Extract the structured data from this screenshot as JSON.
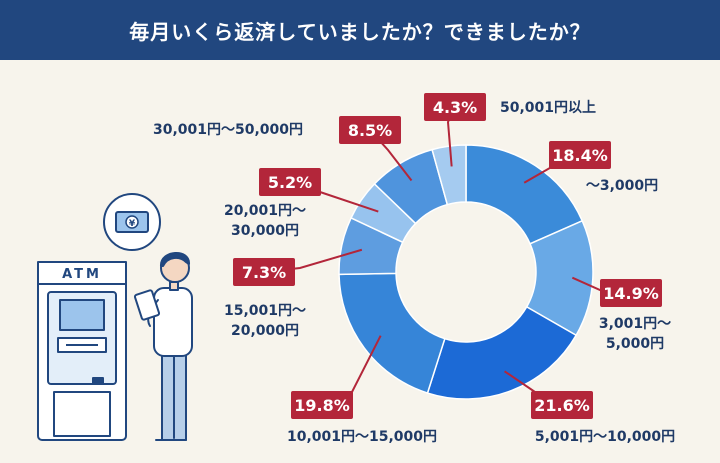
{
  "header": {
    "title": "毎月いくら返済していましたか？できましたか？"
  },
  "illustration": {
    "atm_label": "ATM",
    "bill_symbol": "¥"
  },
  "colors": {
    "header": "#21477f",
    "badge": "#b3263a",
    "label_text": "#1f3a66",
    "background": "#f7f4ec"
  },
  "chart_data": {
    "type": "pie",
    "variant": "donut",
    "title": "",
    "unit": "%",
    "slices": [
      {
        "label_lines": [
          "〜3,000円"
        ],
        "value": 18.4,
        "value_label": "18.4%",
        "color": "#3b8bd9"
      },
      {
        "label_lines": [
          "3,001円〜",
          "5,000円"
        ],
        "value": 14.9,
        "value_label": "14.9%",
        "color": "#69a9e6"
      },
      {
        "label_lines": [
          "5,001円〜10,000円"
        ],
        "value": 21.6,
        "value_label": "21.6%",
        "color": "#1c6ad6"
      },
      {
        "label_lines": [
          "10,001円〜15,000円"
        ],
        "value": 19.8,
        "value_label": "19.8%",
        "color": "#3685d8"
      },
      {
        "label_lines": [
          "15,001円〜",
          "20,000円"
        ],
        "value": 7.3,
        "value_label": "7.3%",
        "color": "#5e9de0"
      },
      {
        "label_lines": [
          "20,001円〜",
          "30,000円"
        ],
        "value": 5.2,
        "value_label": "5.2%",
        "color": "#97c3ee"
      },
      {
        "label_lines": [
          "30,001円〜50,000円"
        ],
        "value": 8.5,
        "value_label": "8.5%",
        "color": "#4f94dd"
      },
      {
        "label_lines": [
          "50,001円以上"
        ],
        "value": 4.3,
        "value_label": "4.3%",
        "color": "#a5cbf0"
      }
    ]
  }
}
